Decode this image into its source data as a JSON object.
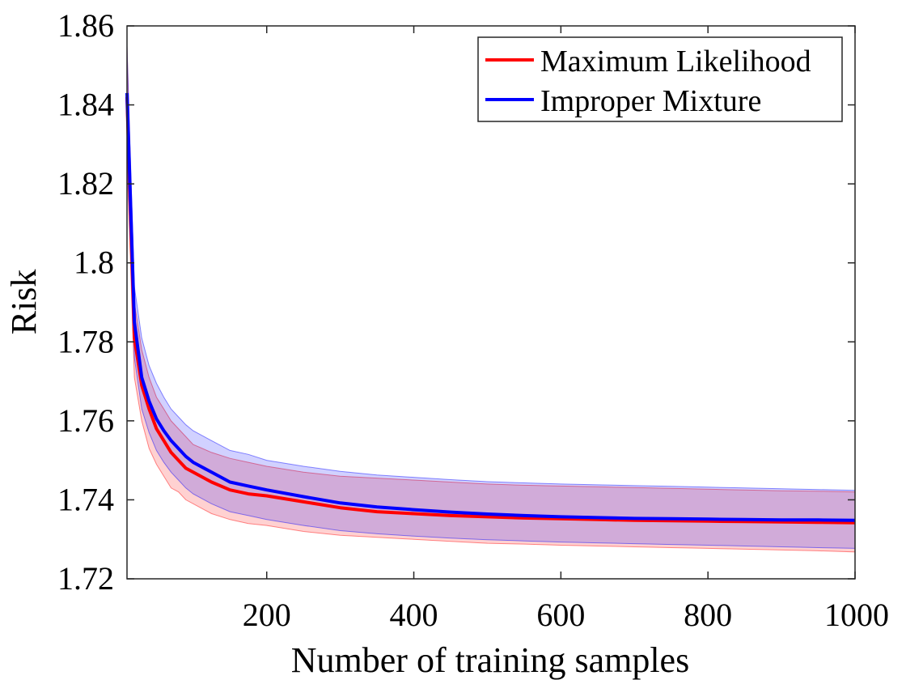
{
  "chart_data": {
    "type": "line",
    "title": "",
    "xlabel": "Number of training samples",
    "ylabel": "Risk",
    "xlim": [
      10,
      1000
    ],
    "ylim": [
      1.72,
      1.86
    ],
    "x_ticks": [
      200,
      400,
      600,
      800,
      1000
    ],
    "x_tick_labels": [
      "200",
      "400",
      "600",
      "800",
      "1000"
    ],
    "y_ticks": [
      1.72,
      1.74,
      1.76,
      1.78,
      1.8,
      1.82,
      1.84,
      1.86
    ],
    "y_tick_labels": [
      "1.72",
      "1.74",
      "1.76",
      "1.78",
      "1.8",
      "1.82",
      "1.84",
      "1.86"
    ],
    "grid": false,
    "legend_position": "top-right",
    "x": [
      10,
      20,
      30,
      40,
      50,
      60,
      70,
      80,
      90,
      100,
      125,
      150,
      175,
      200,
      250,
      300,
      350,
      400,
      450,
      500,
      550,
      600,
      650,
      700,
      750,
      800,
      850,
      900,
      950,
      1000
    ],
    "series": [
      {
        "name": "Maximum Likelihood",
        "color": "#ff0000",
        "band_color": "#ff0000",
        "values": [
          1.842,
          1.781,
          1.769,
          1.763,
          1.758,
          1.755,
          1.752,
          1.75,
          1.748,
          1.747,
          1.7445,
          1.7425,
          1.7415,
          1.741,
          1.7395,
          1.738,
          1.737,
          1.7365,
          1.736,
          1.7357,
          1.7354,
          1.7352,
          1.735,
          1.7348,
          1.7347,
          1.7346,
          1.7345,
          1.7344,
          1.7343,
          1.7342
        ],
        "lower": [
          1.826,
          1.771,
          1.76,
          1.753,
          1.749,
          1.746,
          1.743,
          1.742,
          1.74,
          1.739,
          1.7365,
          1.735,
          1.734,
          1.7335,
          1.732,
          1.731,
          1.7305,
          1.73,
          1.7295,
          1.729,
          1.7288,
          1.7285,
          1.7283,
          1.7281,
          1.7279,
          1.7277,
          1.7275,
          1.7273,
          1.7271,
          1.7268
        ],
        "upper": [
          1.855,
          1.79,
          1.778,
          1.771,
          1.766,
          1.763,
          1.76,
          1.758,
          1.756,
          1.754,
          1.752,
          1.7505,
          1.7495,
          1.7485,
          1.747,
          1.746,
          1.7455,
          1.745,
          1.7445,
          1.744,
          1.7437,
          1.7435,
          1.7433,
          1.7431,
          1.7429,
          1.7427,
          1.7425,
          1.7423,
          1.7422,
          1.742
        ]
      },
      {
        "name": "Improper Mixture",
        "color": "#0000ff",
        "band_color": "#0000ff",
        "values": [
          1.843,
          1.785,
          1.771,
          1.765,
          1.7605,
          1.7575,
          1.755,
          1.753,
          1.751,
          1.7495,
          1.747,
          1.7445,
          1.7435,
          1.7425,
          1.7408,
          1.7392,
          1.7382,
          1.7375,
          1.7369,
          1.7364,
          1.736,
          1.7357,
          1.7355,
          1.7353,
          1.7352,
          1.7351,
          1.735,
          1.7349,
          1.7349,
          1.7348
        ],
        "lower": [
          1.829,
          1.776,
          1.763,
          1.757,
          1.7525,
          1.7495,
          1.747,
          1.745,
          1.743,
          1.7415,
          1.739,
          1.737,
          1.736,
          1.735,
          1.7335,
          1.7322,
          1.7314,
          1.7308,
          1.7303,
          1.7299,
          1.7296,
          1.7293,
          1.7291,
          1.7289,
          1.7287,
          1.7285,
          1.7283,
          1.7281,
          1.7279,
          1.7277
        ],
        "upper": [
          1.855,
          1.794,
          1.781,
          1.774,
          1.7695,
          1.766,
          1.763,
          1.761,
          1.759,
          1.7575,
          1.755,
          1.7525,
          1.7515,
          1.75,
          1.7485,
          1.7472,
          1.7463,
          1.7457,
          1.7451,
          1.7446,
          1.7443,
          1.744,
          1.7438,
          1.7436,
          1.7434,
          1.7432,
          1.743,
          1.7428,
          1.7426,
          1.7424
        ]
      }
    ]
  }
}
